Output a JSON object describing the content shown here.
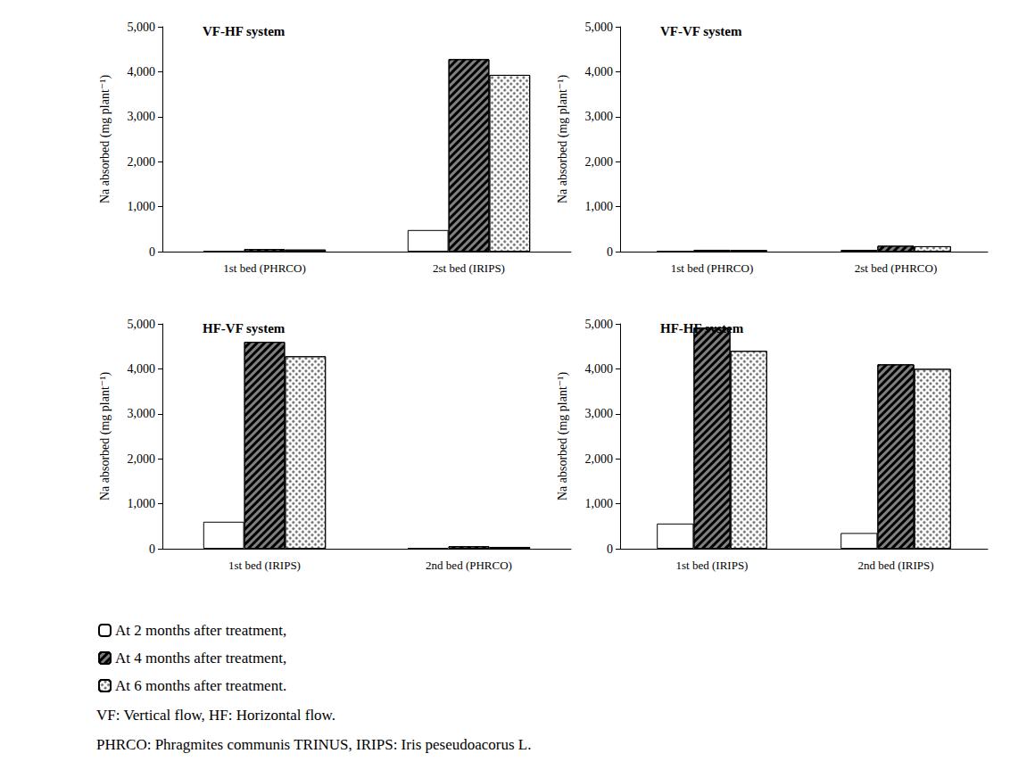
{
  "chart_data": [
    {
      "type": "bar",
      "title": "VF-HF system",
      "ylabel": "Na absorbed (mg plant⁻¹)",
      "categories": [
        "1st bed (PHRCO)",
        "2st bed (IRIPS)"
      ],
      "series": [
        {
          "name": "At 2 months after treatment,",
          "color": "#ffffff",
          "values": [
            10,
            480
          ]
        },
        {
          "name": "At 4 months after treatment,",
          "color": "#808080",
          "values": [
            55,
            4280
          ]
        },
        {
          "name": "At 6 months after treatment.",
          "color": "#ffffff",
          "values": [
            45,
            3930
          ]
        }
      ],
      "ylim": [
        0,
        5000
      ],
      "yticks": [
        0,
        {
          "value": 1000,
          "label": "1,000"
        },
        {
          "value": 2000,
          "label": "2,000"
        },
        {
          "value": 3000,
          "label": "3,000"
        },
        {
          "value": 4000,
          "label": "4,000"
        },
        {
          "value": 5000,
          "label": "5,000"
        }
      ],
      "grid": false
    },
    {
      "type": "bar",
      "title": "VF-VF system",
      "ylabel": "Na absorbed (mg plant⁻¹)",
      "categories": [
        "1st bed (PHRCO)",
        "2st bed (PHRCO)"
      ],
      "series": [
        {
          "name": "At 2 months after treatment,",
          "color": "#ffffff",
          "values": [
            10,
            40
          ]
        },
        {
          "name": "At 4 months after treatment,",
          "color": "#808080",
          "values": [
            40,
            130
          ]
        },
        {
          "name": "At 6 months after treatment.",
          "color": "#ffffff",
          "values": [
            35,
            120
          ]
        }
      ],
      "ylim": [
        0,
        5000
      ],
      "yticks": [
        0,
        {
          "value": 1000,
          "label": "1,000"
        },
        {
          "value": 2000,
          "label": "2,000"
        },
        {
          "value": 3000,
          "label": "3,000"
        },
        {
          "value": 4000,
          "label": "4,000"
        },
        {
          "value": 5000,
          "label": "5,000"
        }
      ],
      "grid": false
    },
    {
      "type": "bar",
      "title": "HF-VF system",
      "ylabel": "Na absorbed (mg plant⁻¹)",
      "categories": [
        "1st bed (IRIPS)",
        "2nd bed (PHRCO)"
      ],
      "series": [
        {
          "name": "At 2 months after treatment,",
          "color": "#ffffff",
          "values": [
            600,
            20
          ]
        },
        {
          "name": "At 4 months after treatment,",
          "color": "#808080",
          "values": [
            4600,
            55
          ]
        },
        {
          "name": "At 6 months after treatment.",
          "color": "#ffffff",
          "values": [
            4280,
            40
          ]
        }
      ],
      "ylim": [
        0,
        5000
      ],
      "yticks": [
        0,
        {
          "value": 1000,
          "label": "1,000"
        },
        {
          "value": 2000,
          "label": "2,000"
        },
        {
          "value": 3000,
          "label": "3,000"
        },
        {
          "value": 4000,
          "label": "4,000"
        },
        {
          "value": 5000,
          "label": "5,000"
        }
      ],
      "grid": false
    },
    {
      "type": "bar",
      "title": "HF-HF system",
      "ylabel": "Na absorbed (mg plant⁻¹)",
      "categories": [
        "1st bed (IRIPS)",
        "2nd bed (IRIPS)"
      ],
      "series": [
        {
          "name": "At 2 months after treatment,",
          "color": "#ffffff",
          "values": [
            560,
            350
          ]
        },
        {
          "name": "At 4 months after treatment,",
          "color": "#808080",
          "values": [
            4920,
            4100
          ]
        },
        {
          "name": "At 6 months after treatment.",
          "color": "#ffffff",
          "values": [
            4400,
            4000
          ]
        }
      ],
      "ylim": [
        0,
        5000
      ],
      "yticks": [
        0,
        {
          "value": 1000,
          "label": "1,000"
        },
        {
          "value": 2000,
          "label": "2,000"
        },
        {
          "value": 3000,
          "label": "3,000"
        },
        {
          "value": 4000,
          "label": "4,000"
        },
        {
          "value": 5000,
          "label": "5,000"
        }
      ],
      "grid": false
    }
  ],
  "notes": [
    "VF: Vertical flow, HF: Horizontal flow.",
    "PHRCO: Phragmites communis TRINUS, IRIPS: Iris peseudoacorus L."
  ]
}
